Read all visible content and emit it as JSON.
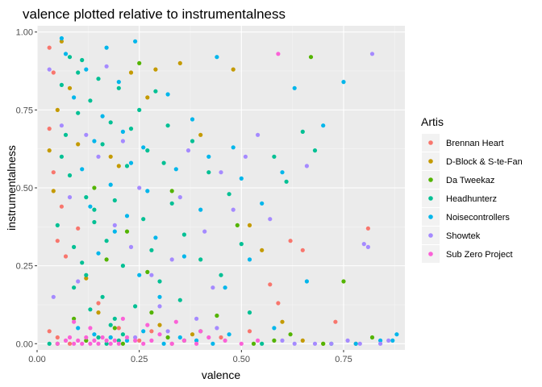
{
  "chart_data": {
    "type": "scatter",
    "title": "valence plotted relative to instrumentalness",
    "xlabel": "valence",
    "ylabel": "instrumentalness",
    "xlim": [
      0,
      0.9
    ],
    "ylim": [
      -0.02,
      1.02
    ],
    "x_ticks": [
      0.0,
      0.25,
      0.5,
      0.75
    ],
    "x_tick_labels": [
      "0.00",
      "0.25",
      "0.50",
      "0.75"
    ],
    "y_ticks": [
      0.0,
      0.25,
      0.5,
      0.75,
      1.0
    ],
    "y_tick_labels": [
      "0.00",
      "0.25",
      "0.50",
      "0.75",
      "1.00"
    ],
    "grid": true,
    "legend": {
      "title": "Artis",
      "position": "right"
    },
    "series": [
      {
        "name": "Brennan Heart",
        "color": "#F8766D",
        "points": [
          [
            0.03,
            0.95
          ],
          [
            0.04,
            0.87
          ],
          [
            0.03,
            0.69
          ],
          [
            0.04,
            0.55
          ],
          [
            0.06,
            0.44
          ],
          [
            0.05,
            0.33
          ],
          [
            0.03,
            0.04
          ],
          [
            0.05,
            0.02
          ],
          [
            0.08,
            0.0
          ],
          [
            0.12,
            0.01
          ],
          [
            0.18,
            0.02
          ],
          [
            0.25,
            0.01
          ],
          [
            0.33,
            0.0
          ],
          [
            0.45,
            0.02
          ],
          [
            0.52,
            0.04
          ],
          [
            0.57,
            0.19
          ],
          [
            0.59,
            0.13
          ],
          [
            0.62,
            0.33
          ],
          [
            0.65,
            0.3
          ],
          [
            0.73,
            0.07
          ],
          [
            0.81,
            0.37
          ],
          [
            0.15,
            0.13
          ],
          [
            0.2,
            0.05
          ],
          [
            0.28,
            0.04
          ],
          [
            0.1,
            0.37
          ],
          [
            0.07,
            0.28
          ]
        ]
      },
      {
        "name": "D-Block & S-te-Fan",
        "color": "#C49A00",
        "points": [
          [
            0.03,
            0.62
          ],
          [
            0.04,
            0.49
          ],
          [
            0.05,
            0.75
          ],
          [
            0.06,
            0.97
          ],
          [
            0.08,
            0.82
          ],
          [
            0.1,
            0.64
          ],
          [
            0.12,
            0.21
          ],
          [
            0.15,
            0.1
          ],
          [
            0.18,
            0.6
          ],
          [
            0.2,
            0.57
          ],
          [
            0.23,
            0.87
          ],
          [
            0.27,
            0.79
          ],
          [
            0.29,
            0.88
          ],
          [
            0.35,
            0.9
          ],
          [
            0.4,
            0.67
          ],
          [
            0.48,
            0.88
          ],
          [
            0.52,
            0.38
          ],
          [
            0.55,
            0.3
          ],
          [
            0.6,
            0.07
          ],
          [
            0.65,
            0.01
          ],
          [
            0.7,
            0.0
          ],
          [
            0.78,
            0.0
          ],
          [
            0.38,
            0.03
          ],
          [
            0.3,
            0.06
          ]
        ]
      },
      {
        "name": "Da Tweekaz",
        "color": "#53B400",
        "points": [
          [
            0.05,
            0.0
          ],
          [
            0.09,
            0.08
          ],
          [
            0.12,
            0.01
          ],
          [
            0.14,
            0.5
          ],
          [
            0.17,
            0.27
          ],
          [
            0.19,
            0.05
          ],
          [
            0.21,
            0.0
          ],
          [
            0.25,
            0.9
          ],
          [
            0.28,
            0.1
          ],
          [
            0.32,
            0.02
          ],
          [
            0.36,
            0.01
          ],
          [
            0.4,
            0.04
          ],
          [
            0.44,
            0.09
          ],
          [
            0.49,
            0.38
          ],
          [
            0.53,
            0.0
          ],
          [
            0.58,
            0.01
          ],
          [
            0.62,
            0.03
          ],
          [
            0.67,
            0.92
          ],
          [
            0.7,
            0.0
          ],
          [
            0.75,
            0.2
          ],
          [
            0.82,
            0.02
          ],
          [
            0.22,
            0.36
          ],
          [
            0.27,
            0.23
          ],
          [
            0.33,
            0.49
          ]
        ]
      },
      {
        "name": "Headhunterz",
        "color": "#00C094",
        "points": [
          [
            0.03,
            0.0
          ],
          [
            0.05,
            0.38
          ],
          [
            0.06,
            0.6
          ],
          [
            0.07,
            0.67
          ],
          [
            0.08,
            0.54
          ],
          [
            0.09,
            0.31
          ],
          [
            0.1,
            0.74
          ],
          [
            0.11,
            0.91
          ],
          [
            0.12,
            0.22
          ],
          [
            0.13,
            0.78
          ],
          [
            0.14,
            0.43
          ],
          [
            0.15,
            0.85
          ],
          [
            0.16,
            0.64
          ],
          [
            0.17,
            0.33
          ],
          [
            0.18,
            0.71
          ],
          [
            0.19,
            0.46
          ],
          [
            0.2,
            0.82
          ],
          [
            0.21,
            0.25
          ],
          [
            0.22,
            0.57
          ],
          [
            0.23,
            0.69
          ],
          [
            0.24,
            0.12
          ],
          [
            0.25,
            0.75
          ],
          [
            0.26,
            0.4
          ],
          [
            0.27,
            0.62
          ],
          [
            0.28,
            0.3
          ],
          [
            0.29,
            0.81
          ],
          [
            0.3,
            0.2
          ],
          [
            0.31,
            0.58
          ],
          [
            0.32,
            0.7
          ],
          [
            0.33,
            0.45
          ],
          [
            0.35,
            0.14
          ],
          [
            0.36,
            0.35
          ],
          [
            0.38,
            0.65
          ],
          [
            0.4,
            0.27
          ],
          [
            0.42,
            0.55
          ],
          [
            0.45,
            0.22
          ],
          [
            0.47,
            0.48
          ],
          [
            0.5,
            0.32
          ],
          [
            0.52,
            0.1
          ],
          [
            0.55,
            0.0
          ],
          [
            0.58,
            0.6
          ],
          [
            0.61,
            0.52
          ],
          [
            0.65,
            0.68
          ],
          [
            0.68,
            0.62
          ],
          [
            0.72,
            0.0
          ],
          [
            0.09,
            0.18
          ],
          [
            0.11,
            0.26
          ],
          [
            0.13,
            0.11
          ],
          [
            0.15,
            0.02
          ],
          [
            0.17,
            0.0
          ],
          [
            0.19,
            0.08
          ],
          [
            0.21,
            0.03
          ],
          [
            0.06,
            0.83
          ],
          [
            0.08,
            0.92
          ],
          [
            0.1,
            0.87
          ],
          [
            0.12,
            0.47
          ],
          [
            0.14,
            0.39
          ],
          [
            0.16,
            0.15
          ],
          [
            0.18,
            0.06
          ],
          [
            0.2,
            0.01
          ]
        ]
      },
      {
        "name": "Noisecontrollers",
        "color": "#00B6EB",
        "points": [
          [
            0.06,
            0.98
          ],
          [
            0.07,
            0.93
          ],
          [
            0.09,
            0.79
          ],
          [
            0.11,
            0.56
          ],
          [
            0.12,
            0.88
          ],
          [
            0.13,
            0.44
          ],
          [
            0.14,
            0.65
          ],
          [
            0.15,
            0.29
          ],
          [
            0.16,
            0.73
          ],
          [
            0.17,
            0.95
          ],
          [
            0.18,
            0.51
          ],
          [
            0.19,
            0.36
          ],
          [
            0.2,
            0.84
          ],
          [
            0.21,
            0.68
          ],
          [
            0.22,
            0.41
          ],
          [
            0.23,
            0.58
          ],
          [
            0.24,
            0.97
          ],
          [
            0.25,
            0.22
          ],
          [
            0.26,
            0.63
          ],
          [
            0.27,
            0.49
          ],
          [
            0.29,
            0.34
          ],
          [
            0.3,
            0.15
          ],
          [
            0.32,
            0.8
          ],
          [
            0.34,
            0.56
          ],
          [
            0.36,
            0.28
          ],
          [
            0.38,
            0.72
          ],
          [
            0.4,
            0.43
          ],
          [
            0.42,
            0.6
          ],
          [
            0.44,
            0.92
          ],
          [
            0.46,
            0.18
          ],
          [
            0.48,
            0.63
          ],
          [
            0.5,
            0.53
          ],
          [
            0.52,
            0.27
          ],
          [
            0.55,
            0.45
          ],
          [
            0.58,
            0.05
          ],
          [
            0.6,
            0.55
          ],
          [
            0.63,
            0.82
          ],
          [
            0.66,
            0.2
          ],
          [
            0.7,
            0.7
          ],
          [
            0.75,
            0.84
          ],
          [
            0.78,
            0.0
          ],
          [
            0.84,
            0.01
          ],
          [
            0.87,
            0.01
          ],
          [
            0.88,
            0.03
          ],
          [
            0.1,
            0.05
          ],
          [
            0.14,
            0.03
          ],
          [
            0.18,
            0.02
          ],
          [
            0.22,
            0.01
          ],
          [
            0.26,
            0.04
          ],
          [
            0.31,
            0.0
          ],
          [
            0.35,
            0.02
          ],
          [
            0.39,
            0.01
          ],
          [
            0.43,
            0.0
          ],
          [
            0.47,
            0.03
          ]
        ]
      },
      {
        "name": "Showtek",
        "color": "#A58AFF",
        "points": [
          [
            0.03,
            0.88
          ],
          [
            0.04,
            0.15
          ],
          [
            0.06,
            0.7
          ],
          [
            0.08,
            0.47
          ],
          [
            0.1,
            0.2
          ],
          [
            0.12,
            0.67
          ],
          [
            0.15,
            0.6
          ],
          [
            0.17,
            0.89
          ],
          [
            0.19,
            0.38
          ],
          [
            0.21,
            0.65
          ],
          [
            0.23,
            0.31
          ],
          [
            0.25,
            0.5
          ],
          [
            0.28,
            0.22
          ],
          [
            0.3,
            0.12
          ],
          [
            0.33,
            0.27
          ],
          [
            0.35,
            0.47
          ],
          [
            0.37,
            0.62
          ],
          [
            0.39,
            0.08
          ],
          [
            0.41,
            0.36
          ],
          [
            0.43,
            0.18
          ],
          [
            0.45,
            0.55
          ],
          [
            0.48,
            0.43
          ],
          [
            0.51,
            0.6
          ],
          [
            0.54,
            0.67
          ],
          [
            0.57,
            0.4
          ],
          [
            0.6,
            0.01
          ],
          [
            0.63,
            0.0
          ],
          [
            0.68,
            0.0
          ],
          [
            0.72,
            0.0
          ],
          [
            0.76,
            0.01
          ],
          [
            0.79,
            0.0
          ],
          [
            0.82,
            0.93
          ],
          [
            0.84,
            0.0
          ],
          [
            0.86,
            0.01
          ],
          [
            0.8,
            0.32
          ],
          [
            0.81,
            0.31
          ],
          [
            0.66,
            0.57
          ],
          [
            0.24,
            0.02
          ],
          [
            0.32,
            0.04
          ],
          [
            0.44,
            0.05
          ]
        ]
      },
      {
        "name": "Sub Zero Project",
        "color": "#FB61D7",
        "points": [
          [
            0.05,
            0.0
          ],
          [
            0.07,
            0.01
          ],
          [
            0.08,
            0.02
          ],
          [
            0.09,
            0.0
          ],
          [
            0.1,
            0.01
          ],
          [
            0.11,
            0.0
          ],
          [
            0.12,
            0.02
          ],
          [
            0.13,
            0.0
          ],
          [
            0.14,
            0.01
          ],
          [
            0.15,
            0.0
          ],
          [
            0.16,
            0.02
          ],
          [
            0.17,
            0.01
          ],
          [
            0.18,
            0.0
          ],
          [
            0.19,
            0.01
          ],
          [
            0.2,
            0.0
          ],
          [
            0.22,
            0.02
          ],
          [
            0.24,
            0.01
          ],
          [
            0.26,
            0.0
          ],
          [
            0.28,
            0.01
          ],
          [
            0.3,
            0.03
          ],
          [
            0.33,
            0.0
          ],
          [
            0.36,
            0.01
          ],
          [
            0.39,
            0.0
          ],
          [
            0.42,
            0.02
          ],
          [
            0.46,
            0.01
          ],
          [
            0.5,
            0.0
          ],
          [
            0.54,
            0.01
          ],
          [
            0.59,
            0.93
          ],
          [
            0.09,
            0.07
          ],
          [
            0.13,
            0.05
          ],
          [
            0.21,
            0.08
          ],
          [
            0.27,
            0.06
          ],
          [
            0.34,
            0.07
          ],
          [
            0.4,
            0.04
          ]
        ]
      }
    ]
  }
}
